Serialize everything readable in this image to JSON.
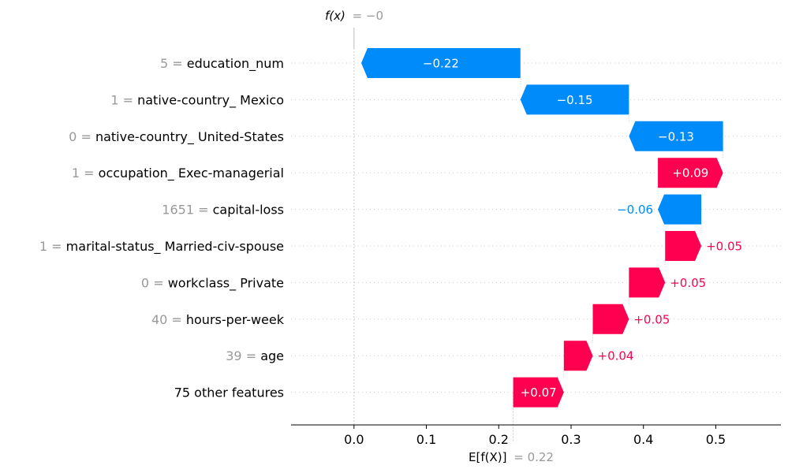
{
  "chart_data": {
    "type": "waterfall",
    "title": "",
    "fx_label": "f(x)",
    "fx_value": "= −0",
    "ex_label": "E[f(X)]",
    "ex_value": "= 0.22",
    "base_value": 0.22,
    "final_value": 0.0,
    "xlim": [
      -0.087,
      0.59
    ],
    "xticks": [
      "0.0",
      "0.1",
      "0.2",
      "0.3",
      "0.4",
      "0.5"
    ],
    "xtick_values": [
      0.0,
      0.1,
      0.2,
      0.3,
      0.4,
      0.5
    ],
    "features": [
      {
        "value": "5",
        "name": "education_num",
        "shap": -0.22,
        "label": "−0.22"
      },
      {
        "value": "1",
        "name": "native-country_ Mexico",
        "shap": -0.15,
        "label": "−0.15"
      },
      {
        "value": "0",
        "name": "native-country_ United-States",
        "shap": -0.13,
        "label": "−0.13"
      },
      {
        "value": "1",
        "name": "occupation_ Exec-managerial",
        "shap": 0.09,
        "label": "+0.09"
      },
      {
        "value": "1651",
        "name": "capital-loss",
        "shap": -0.06,
        "label": "−0.06"
      },
      {
        "value": "1",
        "name": "marital-status_ Married-civ-spouse",
        "shap": 0.05,
        "label": "+0.05"
      },
      {
        "value": "0",
        "name": "workclass_ Private",
        "shap": 0.05,
        "label": "+0.05"
      },
      {
        "value": "40",
        "name": "hours-per-week",
        "shap": 0.05,
        "label": "+0.05"
      },
      {
        "value": "39",
        "name": "age",
        "shap": 0.04,
        "label": "+0.04"
      },
      {
        "value": "",
        "name": "75 other features",
        "shap": 0.07,
        "label": "+0.07"
      }
    ],
    "colors": {
      "positive": "#ff0051",
      "negative": "#008bfb",
      "feature_value": "#999999",
      "axis": "#000000",
      "grid": "#cccccc"
    }
  }
}
